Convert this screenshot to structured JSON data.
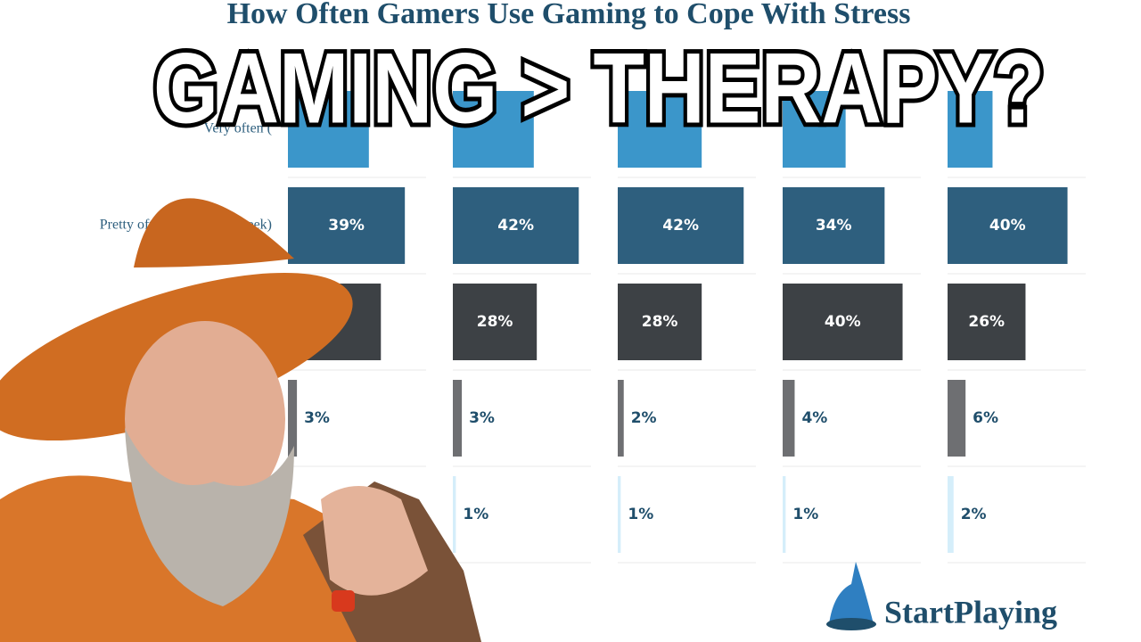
{
  "overlay_title": "GAMING > THERAPY?",
  "logo": "StartPlaying",
  "chart_data": {
    "type": "bar",
    "title": "How Often Gamers Use Gaming to Cope With Stress",
    "categories": [
      "Very often (",
      "Pretty often (2-3 days a week)",
      null,
      null,
      null
    ],
    "colors": [
      "#3b96ca",
      "#2e5f7e",
      "#3d4145",
      "#6e6f72",
      "#d5eefa"
    ],
    "xlim": [
      0,
      55
    ],
    "series": [
      {
        "values": [
          27,
          39,
          31,
          3,
          0
        ],
        "value_labels": [
          null,
          "39%",
          null,
          "3%",
          null
        ]
      },
      {
        "values": [
          27,
          42,
          28,
          3,
          1
        ],
        "value_labels": [
          null,
          "42%",
          "28%",
          "3%",
          "1%"
        ]
      },
      {
        "values": [
          28,
          42,
          28,
          2,
          1
        ],
        "value_labels": [
          null,
          "42%",
          "28%",
          "2%",
          "1%"
        ]
      },
      {
        "values": [
          21,
          34,
          40,
          4,
          1
        ],
        "value_labels": [
          null,
          "34%",
          "40%",
          "4%",
          "1%"
        ]
      },
      {
        "values": [
          15,
          40,
          26,
          6,
          2
        ],
        "value_labels": [
          null,
          "40%",
          "26%",
          "6%",
          "2%"
        ]
      }
    ]
  }
}
